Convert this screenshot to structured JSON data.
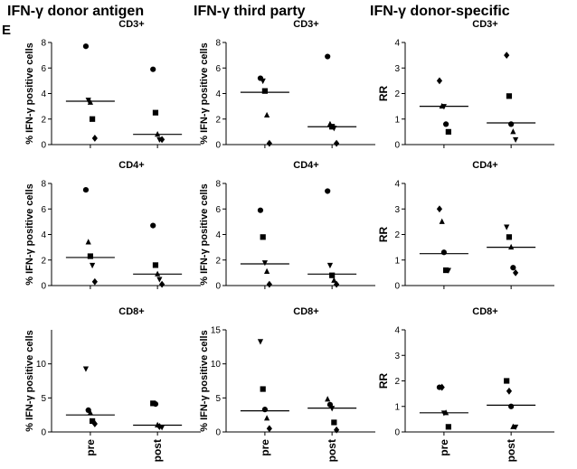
{
  "panel_label": "E",
  "column_titles": [
    "IFN-γ donor antigen",
    "IFN-γ third party",
    "IFN-γ donor-specific"
  ],
  "chart_data": [
    {
      "type": "scatter",
      "title": "CD3+",
      "column": 0,
      "row": 0,
      "ylabel": "% IFN-γ positive cells",
      "ylim": [
        0,
        8
      ],
      "yticks": [
        0,
        2,
        4,
        6,
        8
      ],
      "categories": [
        "pre",
        "post"
      ],
      "series": [
        {
          "name": "pre",
          "values": [
            7.7,
            3.5,
            3.3,
            2.0,
            0.5
          ],
          "markers": [
            "circle",
            "triangle-down",
            "triangle",
            "square",
            "diamond"
          ],
          "median": 3.4
        },
        {
          "name": "post",
          "values": [
            5.9,
            2.5,
            0.8,
            0.4,
            0.4
          ],
          "markers": [
            "circle",
            "square",
            "triangle",
            "triangle-down",
            "diamond"
          ],
          "median": 0.8
        }
      ]
    },
    {
      "type": "scatter",
      "title": "CD3+",
      "column": 1,
      "row": 0,
      "ylabel": "% IFN-γ positive cells",
      "ylim": [
        0,
        8
      ],
      "yticks": [
        0,
        2,
        4,
        6,
        8
      ],
      "categories": [
        "pre",
        "post"
      ],
      "series": [
        {
          "name": "pre",
          "values": [
            5.2,
            5.0,
            4.2,
            2.3,
            0.1
          ],
          "markers": [
            "circle",
            "triangle-down",
            "square",
            "triangle",
            "diamond"
          ],
          "median": 4.1
        },
        {
          "name": "post",
          "values": [
            6.9,
            1.6,
            1.4,
            1.3,
            0.1
          ],
          "markers": [
            "circle",
            "triangle",
            "square",
            "triangle-down",
            "diamond"
          ],
          "median": 1.4
        }
      ]
    },
    {
      "type": "scatter",
      "title": "CD3+",
      "column": 2,
      "row": 0,
      "ylabel": "RR",
      "ylim": [
        0,
        4
      ],
      "yticks": [
        0,
        1,
        2,
        3,
        4
      ],
      "categories": [
        "pre",
        "post"
      ],
      "series": [
        {
          "name": "pre",
          "values": [
            2.5,
            1.5,
            1.5,
            0.8,
            0.5
          ],
          "markers": [
            "diamond",
            "triangle",
            "triangle-down",
            "circle",
            "square"
          ],
          "median": 1.5
        },
        {
          "name": "post",
          "values": [
            3.5,
            1.9,
            0.8,
            0.5,
            0.2
          ],
          "markers": [
            "diamond",
            "square",
            "circle",
            "triangle",
            "triangle-down"
          ],
          "median": 0.85
        }
      ]
    },
    {
      "type": "scatter",
      "title": "CD4+",
      "column": 0,
      "row": 1,
      "ylabel": "% IFN-γ positive cells",
      "ylim": [
        0,
        8
      ],
      "yticks": [
        0,
        2,
        4,
        6,
        8
      ],
      "categories": [
        "pre",
        "post"
      ],
      "series": [
        {
          "name": "pre",
          "values": [
            7.5,
            3.4,
            2.3,
            1.6,
            0.3
          ],
          "markers": [
            "circle",
            "triangle",
            "square",
            "triangle-down",
            "diamond"
          ],
          "median": 2.2
        },
        {
          "name": "post",
          "values": [
            4.7,
            1.6,
            0.9,
            0.5,
            0.1
          ],
          "markers": [
            "circle",
            "square",
            "triangle",
            "triangle-down",
            "diamond"
          ],
          "median": 0.9
        }
      ]
    },
    {
      "type": "scatter",
      "title": "CD4+",
      "column": 1,
      "row": 1,
      "ylabel": "% IFN-γ positive cells",
      "ylim": [
        0,
        8
      ],
      "yticks": [
        0,
        2,
        4,
        6,
        8
      ],
      "categories": [
        "pre",
        "post"
      ],
      "series": [
        {
          "name": "pre",
          "values": [
            5.9,
            3.8,
            1.8,
            1.1,
            0.1
          ],
          "markers": [
            "circle",
            "square",
            "triangle-down",
            "triangle",
            "diamond"
          ],
          "median": 1.7
        },
        {
          "name": "post",
          "values": [
            7.4,
            1.6,
            0.8,
            0.4,
            0.1
          ],
          "markers": [
            "circle",
            "triangle-down",
            "square",
            "triangle",
            "diamond"
          ],
          "median": 0.9
        }
      ]
    },
    {
      "type": "scatter",
      "title": "CD4+",
      "column": 2,
      "row": 1,
      "ylabel": "RR",
      "ylim": [
        0,
        4
      ],
      "yticks": [
        0,
        1,
        2,
        3,
        4
      ],
      "categories": [
        "pre",
        "post"
      ],
      "series": [
        {
          "name": "pre",
          "values": [
            3.0,
            2.5,
            1.3,
            0.6,
            0.6
          ],
          "markers": [
            "diamond",
            "triangle",
            "circle",
            "square",
            "triangle-down"
          ],
          "median": 1.25
        },
        {
          "name": "post",
          "values": [
            2.3,
            1.9,
            1.5,
            0.7,
            0.5
          ],
          "markers": [
            "triangle-down",
            "square",
            "triangle",
            "circle",
            "diamond"
          ],
          "median": 1.5
        }
      ]
    },
    {
      "type": "scatter",
      "title": "CD8+",
      "column": 0,
      "row": 2,
      "ylabel": "% IFN-γ positive cells",
      "ylim": [
        0,
        15
      ],
      "yticks": [
        0,
        5,
        10
      ],
      "categories": [
        "pre",
        "post"
      ],
      "series": [
        {
          "name": "pre",
          "values": [
            9.3,
            3.2,
            2.8,
            1.6,
            1.2
          ],
          "markers": [
            "triangle-down",
            "circle",
            "triangle",
            "square",
            "diamond"
          ],
          "median": 2.5
        },
        {
          "name": "post",
          "values": [
            4.2,
            4.1,
            1.0,
            0.8,
            0.7
          ],
          "markers": [
            "square",
            "circle",
            "triangle",
            "diamond",
            "triangle-down"
          ],
          "median": 1.0
        }
      ]
    },
    {
      "type": "scatter",
      "title": "CD8+",
      "column": 1,
      "row": 2,
      "ylabel": "% IFN-γ positive cells",
      "ylim": [
        0,
        15
      ],
      "yticks": [
        0,
        5,
        10,
        15
      ],
      "categories": [
        "pre",
        "post"
      ],
      "series": [
        {
          "name": "pre",
          "values": [
            13.3,
            6.3,
            3.3,
            2.0,
            0.5
          ],
          "markers": [
            "triangle-down",
            "square",
            "circle",
            "triangle",
            "diamond"
          ],
          "median": 3.1
        },
        {
          "name": "post",
          "values": [
            4.8,
            4.0,
            3.5,
            1.4,
            0.3
          ],
          "markers": [
            "triangle",
            "circle",
            "triangle-down",
            "square",
            "diamond"
          ],
          "median": 3.5
        }
      ]
    },
    {
      "type": "scatter",
      "title": "CD8+",
      "column": 2,
      "row": 2,
      "ylabel": "RR",
      "ylim": [
        0,
        4
      ],
      "yticks": [
        0,
        1,
        2,
        3,
        4
      ],
      "categories": [
        "pre",
        "post"
      ],
      "series": [
        {
          "name": "pre",
          "values": [
            1.75,
            1.75,
            0.75,
            0.75,
            0.2
          ],
          "markers": [
            "circle",
            "diamond",
            "triangle-down",
            "triangle",
            "square"
          ],
          "median": 0.75
        },
        {
          "name": "post",
          "values": [
            2.0,
            1.6,
            1.0,
            0.2,
            0.2
          ],
          "markers": [
            "square",
            "diamond",
            "circle",
            "triangle",
            "triangle-down"
          ],
          "median": 1.05
        }
      ]
    }
  ]
}
